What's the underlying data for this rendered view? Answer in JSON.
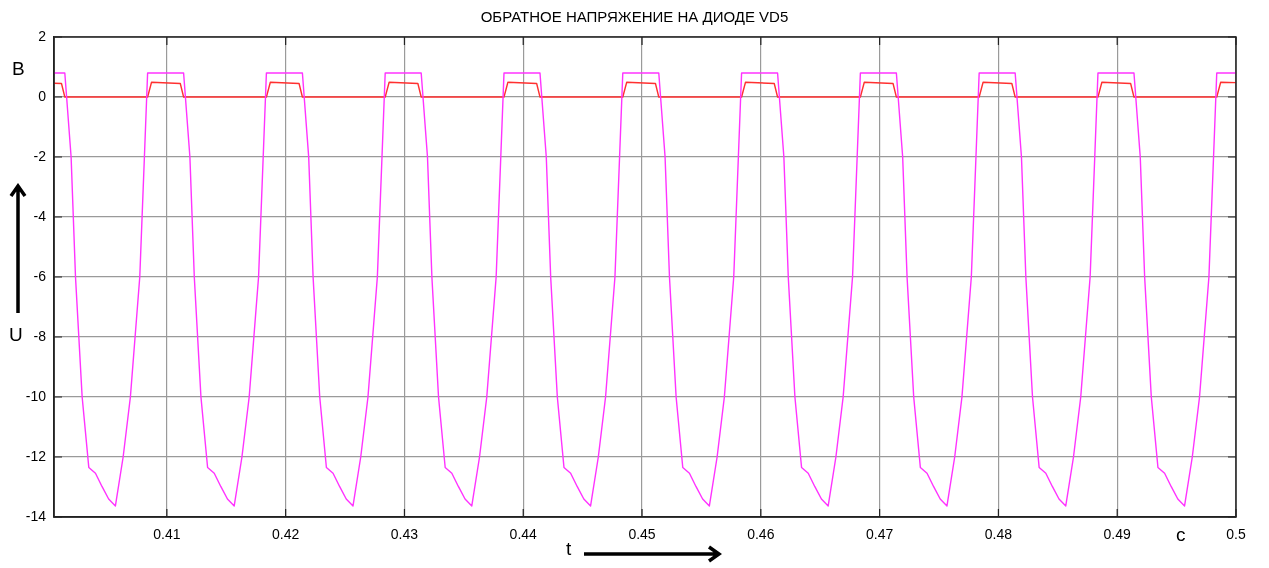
{
  "chart_data": {
    "type": "line",
    "title": "ОБРАТНОЕ НАПРЯЖЕНИЕ НА ДИОДЕ VD5",
    "xlabel": "t",
    "ylabel": "U",
    "annotations": [
      "В",
      "с"
    ],
    "xlim": [
      0.4005,
      0.5
    ],
    "xticks": [
      0.41,
      0.42,
      0.43,
      0.44,
      0.45,
      0.46,
      0.47,
      0.48,
      0.49,
      0.5
    ],
    "ylim": [
      -14,
      2
    ],
    "yticks": [
      -14,
      -12,
      -10,
      -8,
      -6,
      -4,
      -2,
      0,
      2
    ],
    "grid": true,
    "legend": false,
    "marker": "none",
    "line_style": "solid",
    "series": [
      {
        "color": "#ff33ff",
        "x": [
          0.4005,
          0.40141,
          0.40194,
          0.40231,
          0.40287,
          0.40343,
          0.40399,
          0.40455,
          0.4051,
          0.40567,
          0.40632,
          0.40693,
          0.40772,
          0.40811,
          0.40838,
          0.41141,
          0.41194,
          0.41231,
          0.41287,
          0.41343,
          0.41399,
          0.41455,
          0.4151,
          0.41567,
          0.41632,
          0.41693,
          0.41772,
          0.41811,
          0.41838,
          0.42141,
          0.42194,
          0.42231,
          0.42287,
          0.42343,
          0.42399,
          0.42455,
          0.4251,
          0.42567,
          0.42632,
          0.42693,
          0.42772,
          0.42811,
          0.42838,
          0.43141,
          0.43194,
          0.43231,
          0.43287,
          0.43343,
          0.43399,
          0.43455,
          0.4351,
          0.43567,
          0.43632,
          0.43693,
          0.43772,
          0.43811,
          0.43838,
          0.44141,
          0.44194,
          0.44231,
          0.44287,
          0.44343,
          0.44399,
          0.44455,
          0.4451,
          0.44567,
          0.44632,
          0.44693,
          0.44772,
          0.44811,
          0.44838,
          0.45141,
          0.45194,
          0.45231,
          0.45287,
          0.45343,
          0.45399,
          0.45455,
          0.4551,
          0.45567,
          0.45632,
          0.45693,
          0.45772,
          0.45811,
          0.45838,
          0.46141,
          0.46194,
          0.46231,
          0.46287,
          0.46343,
          0.46399,
          0.46455,
          0.4651,
          0.46567,
          0.46632,
          0.46693,
          0.46772,
          0.46811,
          0.46838,
          0.47141,
          0.47194,
          0.47231,
          0.47287,
          0.47343,
          0.47399,
          0.47455,
          0.4751,
          0.47567,
          0.47632,
          0.47693,
          0.47772,
          0.47811,
          0.47838,
          0.48141,
          0.48194,
          0.48231,
          0.48287,
          0.48343,
          0.48399,
          0.48455,
          0.4851,
          0.48567,
          0.48632,
          0.48693,
          0.48772,
          0.48811,
          0.48838,
          0.49141,
          0.49194,
          0.49231,
          0.49287,
          0.49343,
          0.49399,
          0.49455,
          0.4951,
          0.49567,
          0.49632,
          0.49693,
          0.49772,
          0.49811,
          0.49838,
          0.5
        ],
        "values": [
          0.8,
          0.8,
          -2,
          -6,
          -10,
          -12.35,
          -12.54,
          -12.99,
          -13.4,
          -13.63,
          -12,
          -10,
          -6,
          -2,
          0.8,
          0.8,
          -2,
          -6,
          -10,
          -12.35,
          -12.54,
          -12.99,
          -13.4,
          -13.63,
          -12,
          -10,
          -6,
          -2,
          0.8,
          0.8,
          -2,
          -6,
          -10,
          -12.35,
          -12.54,
          -12.99,
          -13.4,
          -13.63,
          -12,
          -10,
          -6,
          -2,
          0.8,
          0.8,
          -2,
          -6,
          -10,
          -12.35,
          -12.54,
          -12.99,
          -13.4,
          -13.63,
          -12,
          -10,
          -6,
          -2,
          0.8,
          0.8,
          -2,
          -6,
          -10,
          -12.35,
          -12.54,
          -12.99,
          -13.4,
          -13.63,
          -12,
          -10,
          -6,
          -2,
          0.8,
          0.8,
          -2,
          -6,
          -10,
          -12.35,
          -12.54,
          -12.99,
          -13.4,
          -13.63,
          -12,
          -10,
          -6,
          -2,
          0.8,
          0.8,
          -2,
          -6,
          -10,
          -12.35,
          -12.54,
          -12.99,
          -13.4,
          -13.63,
          -12,
          -10,
          -6,
          -2,
          0.8,
          0.8,
          -2,
          -6,
          -10,
          -12.35,
          -12.54,
          -12.99,
          -13.4,
          -13.63,
          -12,
          -10,
          -6,
          -2,
          0.8,
          0.8,
          -2,
          -6,
          -10,
          -12.35,
          -12.54,
          -12.99,
          -13.4,
          -13.63,
          -12,
          -10,
          -6,
          -2,
          0.8,
          0.8,
          -2,
          -6,
          -10,
          -12.35,
          -12.54,
          -12.99,
          -13.4,
          -13.63,
          -12,
          -10,
          -6,
          -2,
          0.8,
          0.8
        ]
      },
      {
        "color": "#ff3030",
        "x": [
          0.4005,
          0.40113,
          0.40141,
          0.40838,
          0.40871,
          0.41113,
          0.41141,
          0.41838,
          0.41871,
          0.42113,
          0.42141,
          0.42838,
          0.42871,
          0.43113,
          0.43141,
          0.43838,
          0.43871,
          0.44113,
          0.44141,
          0.44838,
          0.44871,
          0.45113,
          0.45141,
          0.45838,
          0.45871,
          0.46113,
          0.46141,
          0.46838,
          0.46871,
          0.47113,
          0.47141,
          0.47838,
          0.47871,
          0.48113,
          0.48141,
          0.48838,
          0.48871,
          0.49113,
          0.49141,
          0.49838,
          0.49871,
          0.5
        ],
        "values": [
          0.46,
          0.45,
          0,
          0,
          0.49,
          0.45,
          0,
          0,
          0.49,
          0.45,
          0,
          0,
          0.49,
          0.45,
          0,
          0,
          0.49,
          0.45,
          0,
          0,
          0.49,
          0.45,
          0,
          0,
          0.49,
          0.45,
          0,
          0,
          0.49,
          0.45,
          0,
          0,
          0.49,
          0.45,
          0,
          0,
          0.49,
          0.45,
          0,
          0,
          0.49,
          0.48
        ]
      }
    ]
  }
}
